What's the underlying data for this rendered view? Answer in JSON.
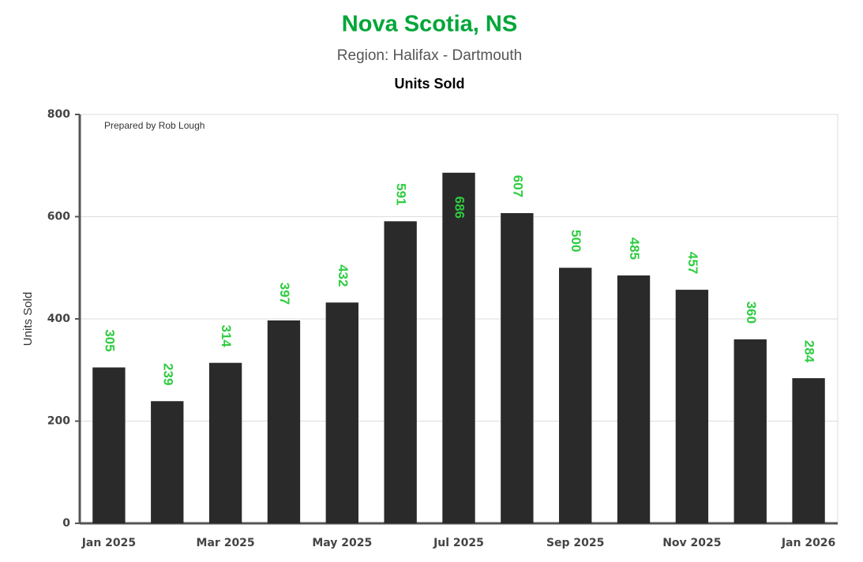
{
  "chart_data": {
    "type": "bar",
    "title": "Nova Scotia, NS",
    "subtitle": "Region: Halifax - Dartmouth",
    "chart_subtitle": "Units Sold",
    "annotation": "Prepared by Rob Lough",
    "y_label": "Units Sold",
    "categories": [
      "Jan 2025",
      null,
      "Mar 2025",
      null,
      "May 2025",
      null,
      "Jul 2025",
      null,
      "Sep 2025",
      null,
      "Nov 2025",
      null,
      "Jan 2026"
    ],
    "values": [
      305,
      239,
      314,
      397,
      432,
      591,
      686,
      607,
      500,
      485,
      457,
      360,
      284
    ],
    "color": "#262626",
    "label_color": "#2ecc40",
    "ylim": [
      0,
      800
    ],
    "yticks": [
      0,
      200,
      400,
      600,
      800
    ],
    "grid": true
  }
}
